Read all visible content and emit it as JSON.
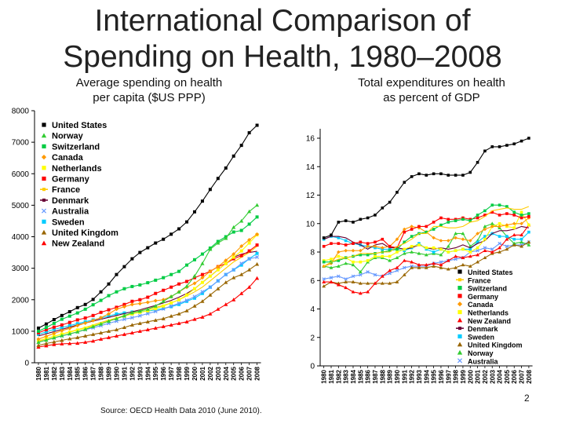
{
  "title_line1": "International Comparison of",
  "title_line2": "Spending on Health, 1980–2008",
  "source": "Source: OECD Health Data 2010 (June 2010).",
  "page_number": "2",
  "chart_data": [
    {
      "type": "line",
      "title_line1": "Average spending on health",
      "title_line2": "per capita ($US PPP)",
      "ylim": [
        0,
        8000
      ],
      "yticks": [
        0,
        1000,
        2000,
        3000,
        4000,
        5000,
        6000,
        7000,
        8000
      ],
      "legend": "top-left",
      "x": [
        "1980",
        "1981",
        "1982",
        "1983",
        "1984",
        "1985",
        "1986",
        "1987",
        "1988",
        "1989",
        "1990",
        "1991",
        "1992",
        "1993",
        "1994",
        "1995",
        "1996",
        "1997",
        "1998",
        "1999",
        "2000",
        "2001",
        "2002",
        "2003",
        "2004",
        "2005",
        "2006",
        "2007",
        "2008"
      ],
      "series": [
        {
          "name": "United States",
          "color": "#000000",
          "marker": "square",
          "values": [
            1100,
            1230,
            1370,
            1500,
            1620,
            1750,
            1850,
            2010,
            2250,
            2500,
            2800,
            3050,
            3300,
            3500,
            3650,
            3800,
            3920,
            4080,
            4250,
            4470,
            4790,
            5130,
            5500,
            5850,
            6180,
            6560,
            6900,
            7300,
            7538
          ]
        },
        {
          "name": "Norway",
          "color": "#33cc33",
          "marker": "triangle",
          "values": [
            650,
            720,
            790,
            860,
            920,
            980,
            1060,
            1150,
            1230,
            1320,
            1400,
            1490,
            1590,
            1640,
            1700,
            1800,
            1950,
            2100,
            2250,
            2430,
            2750,
            3150,
            3600,
            3800,
            3950,
            4300,
            4500,
            4800,
            5003
          ]
        },
        {
          "name": "Switzerland",
          "color": "#00cc44",
          "marker": "square",
          "values": [
            1000,
            1120,
            1250,
            1380,
            1480,
            1580,
            1700,
            1840,
            1980,
            2130,
            2250,
            2350,
            2420,
            2470,
            2540,
            2620,
            2700,
            2800,
            2900,
            3100,
            3270,
            3450,
            3640,
            3850,
            4000,
            4150,
            4200,
            4400,
            4627
          ]
        },
        {
          "name": "Canada",
          "color": "#ff9900",
          "marker": "diamond",
          "values": [
            750,
            840,
            930,
            1020,
            1090,
            1180,
            1260,
            1340,
            1430,
            1550,
            1700,
            1780,
            1850,
            1880,
            1920,
            1970,
            2000,
            2100,
            2250,
            2400,
            2520,
            2700,
            2900,
            3050,
            3250,
            3450,
            3700,
            3900,
            4079
          ]
        },
        {
          "name": "Netherlands",
          "color": "#ffff00",
          "marker": "square",
          "values": [
            700,
            770,
            840,
            910,
            970,
            1040,
            1100,
            1170,
            1240,
            1320,
            1410,
            1480,
            1550,
            1600,
            1650,
            1720,
            1800,
            1900,
            2000,
            2150,
            2350,
            2550,
            2750,
            2950,
            3150,
            3350,
            3550,
            3800,
            4063
          ]
        },
        {
          "name": "Germany",
          "color": "#ff0000",
          "marker": "square",
          "values": [
            950,
            1050,
            1130,
            1200,
            1280,
            1360,
            1420,
            1500,
            1600,
            1680,
            1760,
            1850,
            1950,
            2000,
            2080,
            2200,
            2300,
            2400,
            2500,
            2580,
            2700,
            2800,
            2900,
            3050,
            3150,
            3300,
            3400,
            3550,
            3737
          ]
        },
        {
          "name": "France",
          "color": "#ffcc00",
          "marker": "line",
          "values": [
            680,
            760,
            840,
            910,
            980,
            1050,
            1120,
            1200,
            1280,
            1350,
            1420,
            1500,
            1580,
            1650,
            1700,
            1760,
            1820,
            1900,
            2000,
            2120,
            2250,
            2400,
            2600,
            2800,
            3000,
            3200,
            3350,
            3500,
            3696
          ]
        },
        {
          "name": "Denmark",
          "color": "#660033",
          "marker": "line",
          "values": [
            850,
            920,
            990,
            1060,
            1130,
            1200,
            1260,
            1320,
            1380,
            1440,
            1500,
            1560,
            1620,
            1680,
            1750,
            1820,
            1900,
            1980,
            2080,
            2200,
            2350,
            2550,
            2750,
            2950,
            3150,
            3350,
            3450,
            3500,
            3540
          ]
        },
        {
          "name": "Australia",
          "color": "#6699ff",
          "marker": "x",
          "values": [
            650,
            720,
            790,
            850,
            910,
            980,
            1050,
            1110,
            1180,
            1250,
            1320,
            1380,
            1430,
            1490,
            1560,
            1630,
            1710,
            1800,
            1890,
            1980,
            2100,
            2250,
            2400,
            2600,
            2800,
            2950,
            3150,
            3300,
            3353
          ]
        },
        {
          "name": "Sweden",
          "color": "#00ccff",
          "marker": "square",
          "values": [
            900,
            980,
            1060,
            1120,
            1180,
            1240,
            1300,
            1360,
            1420,
            1480,
            1550,
            1580,
            1610,
            1620,
            1640,
            1680,
            1720,
            1780,
            1850,
            1950,
            2050,
            2200,
            2400,
            2600,
            2800,
            2950,
            3100,
            3300,
            3470
          ]
        },
        {
          "name": "United Kingdom",
          "color": "#996600",
          "marker": "triangle",
          "values": [
            550,
            610,
            660,
            710,
            760,
            800,
            850,
            900,
            950,
            1000,
            1050,
            1120,
            1200,
            1250,
            1300,
            1350,
            1400,
            1480,
            1550,
            1650,
            1800,
            1950,
            2150,
            2350,
            2550,
            2700,
            2800,
            2950,
            3129
          ]
        },
        {
          "name": "New Zealand",
          "color": "#ff0000",
          "marker": "triangle",
          "values": [
            500,
            540,
            580,
            600,
            610,
            620,
            650,
            690,
            750,
            800,
            850,
            900,
            950,
            1000,
            1050,
            1100,
            1150,
            1200,
            1250,
            1300,
            1380,
            1450,
            1550,
            1700,
            1850,
            2000,
            2200,
            2400,
            2683
          ]
        }
      ]
    },
    {
      "type": "line",
      "title_line1": "Total expenditures on health",
      "title_line2": "as percent of GDP",
      "ylim": [
        0,
        16
      ],
      "yticks": [
        0,
        2,
        4,
        6,
        8,
        10,
        12,
        14,
        16
      ],
      "legend": "bottom-right",
      "x": [
        "1980",
        "1981",
        "1982",
        "1983",
        "1984",
        "1985",
        "1986",
        "1987",
        "1988",
        "1989",
        "1990",
        "1991",
        "1992",
        "1993",
        "1994",
        "1995",
        "1996",
        "1997",
        "1998",
        "1999",
        "2000",
        "2001",
        "2002",
        "2003",
        "2004",
        "2005",
        "2006",
        "2007",
        "2008"
      ],
      "series": [
        {
          "name": "United States",
          "color": "#000000",
          "marker": "square",
          "values": [
            9.0,
            9.2,
            10.1,
            10.2,
            10.1,
            10.3,
            10.4,
            10.6,
            11.1,
            11.5,
            12.2,
            12.9,
            13.3,
            13.5,
            13.4,
            13.5,
            13.5,
            13.4,
            13.4,
            13.4,
            13.6,
            14.3,
            15.1,
            15.4,
            15.4,
            15.5,
            15.6,
            15.8,
            16.0
          ]
        },
        {
          "name": "France",
          "color": "#ffcc00",
          "marker": "line",
          "values": [
            7.0,
            7.3,
            7.5,
            7.6,
            7.7,
            7.9,
            7.9,
            7.9,
            8.0,
            8.0,
            8.4,
            8.6,
            8.9,
            9.3,
            9.3,
            9.8,
            9.8,
            9.7,
            9.7,
            9.8,
            10.1,
            10.2,
            10.5,
            10.9,
            11.0,
            11.1,
            11.0,
            11.0,
            11.2
          ]
        },
        {
          "name": "Switzerland",
          "color": "#00cc44",
          "marker": "square",
          "values": [
            7.3,
            7.3,
            7.4,
            7.6,
            7.7,
            7.8,
            7.8,
            7.9,
            8.0,
            8.1,
            8.2,
            8.7,
            9.1,
            9.3,
            9.4,
            9.6,
            9.9,
            10.1,
            10.2,
            10.3,
            10.2,
            10.6,
            10.9,
            11.3,
            11.3,
            11.2,
            10.8,
            10.6,
            10.7
          ]
        },
        {
          "name": "Germany",
          "color": "#ff0000",
          "marker": "square",
          "values": [
            8.4,
            8.6,
            8.6,
            8.5,
            8.6,
            8.7,
            8.6,
            8.7,
            8.9,
            8.4,
            8.3,
            9.4,
            9.6,
            9.8,
            9.8,
            10.1,
            10.4,
            10.3,
            10.3,
            10.4,
            10.3,
            10.4,
            10.6,
            10.8,
            10.6,
            10.7,
            10.6,
            10.4,
            10.5
          ]
        },
        {
          "name": "Canada",
          "color": "#ff9900",
          "marker": "diamond",
          "values": [
            7.0,
            7.2,
            8.0,
            8.1,
            8.1,
            8.1,
            8.4,
            8.4,
            8.3,
            8.4,
            8.9,
            9.6,
            9.8,
            9.7,
            9.4,
            9.0,
            8.8,
            8.8,
            9.0,
            8.9,
            8.8,
            9.3,
            9.6,
            9.8,
            9.8,
            9.9,
            10.0,
            10.0,
            10.4
          ]
        },
        {
          "name": "Netherlands",
          "color": "#ffff00",
          "marker": "square",
          "values": [
            7.4,
            7.5,
            7.7,
            7.6,
            7.3,
            7.3,
            7.4,
            7.7,
            7.7,
            7.7,
            8.0,
            8.2,
            8.4,
            8.5,
            8.3,
            8.3,
            8.2,
            8.0,
            8.1,
            8.2,
            8.0,
            8.3,
            8.9,
            9.8,
            10.0,
            9.8,
            9.7,
            10.8,
            9.9
          ]
        },
        {
          "name": "New Zealand",
          "color": "#ff0000",
          "marker": "triangle",
          "values": [
            5.9,
            5.9,
            5.7,
            5.5,
            5.2,
            5.1,
            5.2,
            5.8,
            6.3,
            6.7,
            6.9,
            7.4,
            7.3,
            7.1,
            7.1,
            7.2,
            7.1,
            7.4,
            7.7,
            7.6,
            7.7,
            7.8,
            8.1,
            8.0,
            8.3,
            8.9,
            9.2,
            9.2,
            9.9
          ]
        },
        {
          "name": "Denmark",
          "color": "#660033",
          "marker": "line",
          "values": [
            8.9,
            9.1,
            9.1,
            9.0,
            8.7,
            8.5,
            8.2,
            8.5,
            8.6,
            8.3,
            8.3,
            8.2,
            8.3,
            8.5,
            8.3,
            8.2,
            8.3,
            8.2,
            8.3,
            8.5,
            8.3,
            8.6,
            8.8,
            9.3,
            9.5,
            9.5,
            9.6,
            9.8,
            9.7
          ]
        },
        {
          "name": "Sweden",
          "color": "#00ccff",
          "marker": "square",
          "values": [
            8.9,
            9.1,
            9.0,
            8.8,
            8.6,
            8.5,
            8.4,
            8.3,
            8.2,
            8.2,
            8.2,
            8.1,
            8.3,
            8.6,
            8.2,
            8.0,
            8.2,
            8.0,
            8.1,
            8.2,
            8.2,
            8.7,
            9.1,
            9.3,
            9.1,
            9.1,
            8.9,
            8.9,
            9.4
          ]
        },
        {
          "name": "United Kingdom",
          "color": "#996600",
          "marker": "triangle",
          "values": [
            5.6,
            5.9,
            5.8,
            5.9,
            5.9,
            5.8,
            5.8,
            5.8,
            5.8,
            5.8,
            5.9,
            6.4,
            6.9,
            6.9,
            6.9,
            7.0,
            6.9,
            6.8,
            6.9,
            7.1,
            7.0,
            7.3,
            7.6,
            7.9,
            8.0,
            8.2,
            8.5,
            8.4,
            8.7
          ]
        },
        {
          "name": "Norway",
          "color": "#33cc33",
          "marker": "triangle",
          "values": [
            7.0,
            6.9,
            7.0,
            7.2,
            7.1,
            6.6,
            7.3,
            7.6,
            7.6,
            7.4,
            7.6,
            7.9,
            8.0,
            7.9,
            7.8,
            7.9,
            7.8,
            8.4,
            9.3,
            9.3,
            8.4,
            8.8,
            9.8,
            10.0,
            9.7,
            9.1,
            8.6,
            8.7,
            8.5
          ]
        },
        {
          "name": "Australia",
          "color": "#6699ff",
          "marker": "x",
          "values": [
            6.1,
            6.2,
            6.3,
            6.1,
            6.3,
            6.4,
            6.6,
            6.4,
            6.3,
            6.5,
            6.7,
            6.9,
            7.0,
            7.0,
            7.0,
            7.2,
            7.3,
            7.4,
            7.5,
            7.6,
            8.0,
            8.1,
            8.3,
            8.2,
            8.6,
            8.4,
            8.5,
            8.5,
            8.7
          ]
        }
      ]
    }
  ]
}
